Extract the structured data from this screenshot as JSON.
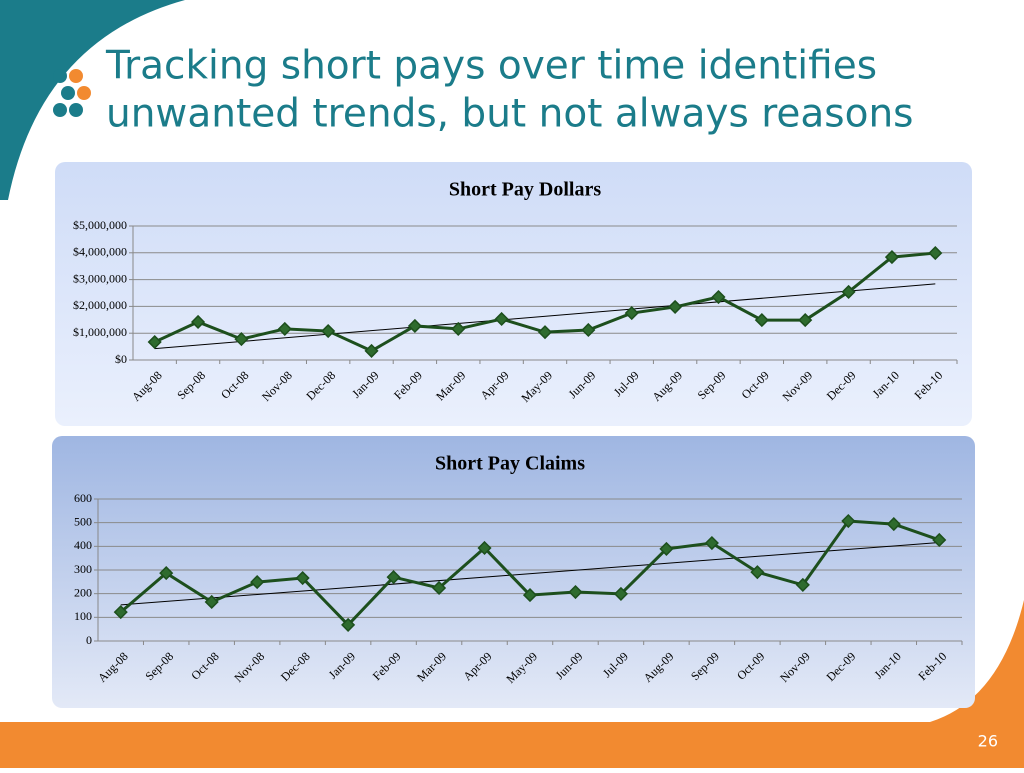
{
  "slide_title": [
    "Tracking short pays over time identifies",
    "unwanted trends, but not always reasons"
  ],
  "page_number": "26",
  "chart_data": [
    {
      "type": "line",
      "title": "Short Pay Dollars",
      "categories": [
        "Aug-08",
        "Sep-08",
        "Oct-08",
        "Nov-08",
        "Dec-08",
        "Jan-09",
        "Feb-09",
        "Mar-09",
        "Apr-09",
        "May-09",
        "Jun-09",
        "Jul-09",
        "Aug-09",
        "Sep-09",
        "Oct-09",
        "Nov-09",
        "Dec-09",
        "Jan-10",
        "Feb-10"
      ],
      "values": [
        670000,
        1420000,
        780000,
        1160000,
        1080000,
        340000,
        1270000,
        1160000,
        1530000,
        1040000,
        1120000,
        1750000,
        1980000,
        2350000,
        1490000,
        1490000,
        2540000,
        3840000,
        3990000
      ],
      "color": "#1d4f1d",
      "trendline": true,
      "grid": true,
      "ylim": [
        0,
        5000000
      ],
      "yticks": [
        {
          "value": 0,
          "label": "$0"
        },
        {
          "value": 1000000,
          "label": "$1,000,000"
        },
        {
          "value": 2000000,
          "label": "$2,000,000"
        },
        {
          "value": 3000000,
          "label": "$3,000,000"
        },
        {
          "value": 4000000,
          "label": "$4,000,000"
        },
        {
          "value": 5000000,
          "label": "$5,000,000"
        }
      ]
    },
    {
      "type": "line",
      "title": "Short Pay Claims",
      "categories": [
        "Aug-08",
        "Sep-08",
        "Oct-08",
        "Nov-08",
        "Dec-08",
        "Jan-09",
        "Feb-09",
        "Mar-09",
        "Apr-09",
        "May-09",
        "Jun-09",
        "Jul-09",
        "Aug-09",
        "Sep-09",
        "Oct-09",
        "Nov-09",
        "Dec-09",
        "Jan-10",
        "Feb-10"
      ],
      "values": [
        122,
        287,
        165,
        249,
        266,
        68,
        270,
        224,
        393,
        194,
        207,
        199,
        389,
        414,
        291,
        237,
        507,
        494,
        427
      ],
      "color": "#1d4f1d",
      "trendline": true,
      "grid": true,
      "ylim": [
        0,
        600
      ],
      "yticks": [
        0,
        100,
        200,
        300,
        400,
        500,
        600
      ]
    }
  ]
}
